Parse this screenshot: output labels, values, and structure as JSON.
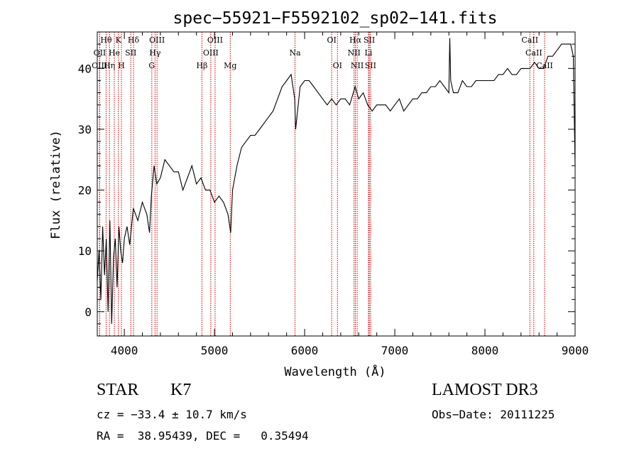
{
  "chart_data": {
    "type": "line",
    "title": "spec−55921−F5592102_sp02−141.fits",
    "xlabel": "Wavelength (Å)",
    "ylabel": "Flux (relative)",
    "xlim": [
      3700,
      9000
    ],
    "ylim": [
      -4,
      46
    ],
    "xticks": [
      4000,
      5000,
      6000,
      7000,
      8000,
      9000
    ],
    "yticks": [
      0,
      10,
      20,
      30,
      40
    ],
    "series": [
      {
        "x": [
          3700,
          3720,
          3740,
          3760,
          3780,
          3800,
          3820,
          3840,
          3860,
          3880,
          3900,
          3920,
          3940,
          3960,
          3980,
          4000,
          4030,
          4060,
          4100,
          4150,
          4200,
          4250,
          4280,
          4300,
          4330,
          4360,
          4400,
          4450,
          4500,
          4550,
          4600,
          4650,
          4700,
          4750,
          4800,
          4850,
          4900,
          4950,
          5000,
          5050,
          5100,
          5150,
          5180,
          5200,
          5250,
          5300,
          5350,
          5400,
          5450,
          5500,
          5550,
          5600,
          5650,
          5700,
          5750,
          5800,
          5850,
          5890,
          5900,
          5950,
          6000,
          6050,
          6100,
          6150,
          6200,
          6250,
          6300,
          6350,
          6400,
          6450,
          6500,
          6560,
          6600,
          6650,
          6700,
          6750,
          6800,
          6850,
          6900,
          6950,
          7000,
          7050,
          7100,
          7150,
          7200,
          7250,
          7300,
          7350,
          7400,
          7450,
          7500,
          7550,
          7600,
          7610,
          7620,
          7650,
          7700,
          7750,
          7800,
          7850,
          7900,
          7950,
          8000,
          8050,
          8100,
          8150,
          8200,
          8250,
          8300,
          8350,
          8400,
          8450,
          8500,
          8550,
          8600,
          8650,
          8700,
          8750,
          8800,
          8850,
          8900,
          8950,
          8980,
          9000
        ],
        "y": [
          5,
          10,
          2,
          14,
          6,
          12,
          0,
          15,
          -2,
          9,
          12,
          4,
          14,
          10,
          8,
          12,
          14,
          11,
          17,
          15,
          18,
          16,
          13,
          19,
          24,
          21,
          22,
          25,
          24,
          23,
          23,
          20,
          22,
          24,
          21,
          22,
          20,
          20,
          18,
          19,
          18,
          16,
          13,
          20,
          24,
          27,
          28,
          29,
          29,
          30,
          31,
          32,
          33,
          35,
          37,
          38,
          39,
          35,
          30,
          37,
          38,
          38,
          37,
          36,
          35,
          34,
          35,
          34,
          35,
          35,
          34,
          37,
          35,
          36,
          34,
          33,
          34,
          34,
          34,
          33,
          34,
          35,
          33,
          34,
          35,
          35,
          36,
          36,
          37,
          37,
          38,
          37,
          36,
          45,
          38,
          36,
          36,
          38,
          37,
          37,
          38,
          38,
          38,
          38,
          38,
          39,
          39,
          40,
          39,
          39,
          40,
          40,
          40,
          41,
          40,
          40,
          42,
          42,
          43,
          44,
          44,
          44,
          42,
          24
        ]
      }
    ],
    "line_labels": [
      {
        "label": "Hθ",
        "x": 3798,
        "row": 0
      },
      {
        "label": "K",
        "x": 3934,
        "row": 0
      },
      {
        "label": "Hδ",
        "x": 4102,
        "row": 0
      },
      {
        "label": "OIII",
        "x": 4363,
        "row": 0
      },
      {
        "label": "OIII",
        "x": 5007,
        "row": 0
      },
      {
        "label": "OI",
        "x": 6300,
        "row": 0
      },
      {
        "label": "Hα",
        "x": 6563,
        "row": 0
      },
      {
        "label": "SII",
        "x": 6717,
        "row": 0
      },
      {
        "label": "CaII",
        "x": 8498,
        "row": 0
      },
      {
        "label": "OII",
        "x": 3727,
        "row": 1
      },
      {
        "label": "He",
        "x": 3889,
        "row": 1
      },
      {
        "label": "SII",
        "x": 4072,
        "row": 1
      },
      {
        "label": "Hγ",
        "x": 4341,
        "row": 1
      },
      {
        "label": "OIII",
        "x": 4959,
        "row": 1
      },
      {
        "label": "Na",
        "x": 5893,
        "row": 1
      },
      {
        "label": "NII",
        "x": 6548,
        "row": 1
      },
      {
        "label": "Li",
        "x": 6708,
        "row": 1
      },
      {
        "label": "CaII",
        "x": 8542,
        "row": 1
      },
      {
        "label": "OIII",
        "x": 3725,
        "row": 2
      },
      {
        "label": "Hη",
        "x": 3835,
        "row": 2
      },
      {
        "label": "H",
        "x": 3968,
        "row": 2
      },
      {
        "label": "G",
        "x": 4305,
        "row": 2
      },
      {
        "label": "Hβ",
        "x": 4861,
        "row": 2
      },
      {
        "label": "Mg",
        "x": 5175,
        "row": 2
      },
      {
        "label": "OI",
        "x": 6364,
        "row": 2
      },
      {
        "label": "NII",
        "x": 6583,
        "row": 2
      },
      {
        "label": "SII",
        "x": 6731,
        "row": 2
      },
      {
        "label": "CaII",
        "x": 8662,
        "row": 2
      }
    ],
    "grid": false,
    "line_color": "#000000",
    "marker_color": "#c00000"
  },
  "info": {
    "class": "STAR",
    "subclass": "K7",
    "survey": "LAMOST DR3",
    "cz": "cz = −33.4 ± 10.7 km/s",
    "obs_date": "Obs−Date: 20111225",
    "coords": "RA =  38.95439, DEC =   0.35494"
  }
}
